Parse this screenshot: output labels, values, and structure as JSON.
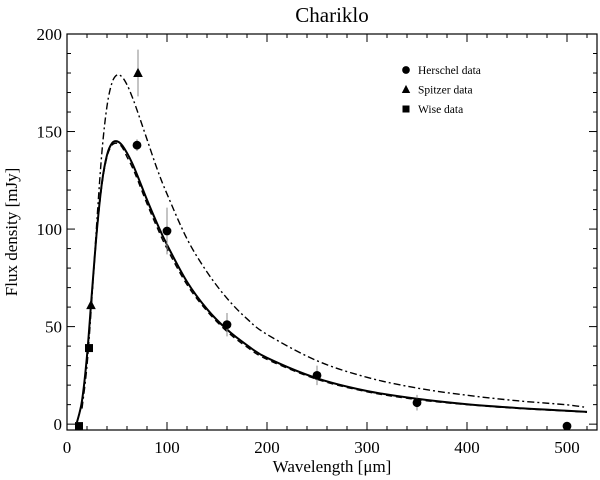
{
  "chart_data": {
    "type": "scatter",
    "title": "Chariklo",
    "xlabel": "Wavelength [μm]",
    "ylabel": "Flux density [mJy]",
    "xlim": [
      0,
      530
    ],
    "ylim": [
      -3,
      200
    ],
    "x_ticks": [
      0,
      100,
      200,
      300,
      400,
      500
    ],
    "x_tick_labels": [
      "0",
      "100",
      "200",
      "300",
      "400",
      "500"
    ],
    "y_ticks": [
      0,
      50,
      100,
      150,
      200
    ],
    "y_tick_labels": [
      "0",
      "50",
      "100",
      "150",
      "200"
    ],
    "legend_position": "top-right",
    "grid": false,
    "series": [
      {
        "name": "Herschel data",
        "marker": "circle",
        "x": [
          70,
          100,
          160,
          250,
          350,
          500
        ],
        "y": [
          143,
          99,
          51,
          25,
          11,
          -1
        ],
        "yerr": [
          3,
          12,
          6,
          5,
          4,
          2
        ]
      },
      {
        "name": "Spitzer data",
        "marker": "triangle",
        "x": [
          24,
          71
        ],
        "y": [
          61,
          180
        ],
        "yerr": [
          2,
          12
        ]
      },
      {
        "name": "Wise data",
        "marker": "square",
        "x": [
          12,
          22
        ],
        "y": [
          -1,
          39
        ],
        "yerr": [
          1,
          2
        ]
      }
    ],
    "models": [
      {
        "style": "solid",
        "x": [
          10,
          15,
          20,
          25,
          30,
          35,
          40,
          45,
          50,
          55,
          60,
          65,
          70,
          80,
          90,
          100,
          120,
          140,
          160,
          180,
          200,
          250,
          300,
          350,
          400,
          450,
          500,
          520
        ],
        "y": [
          1,
          12,
          35,
          68,
          100,
          124,
          138,
          144,
          145,
          143,
          139,
          134,
          128,
          115,
          103,
          92,
          73,
          59,
          48.5,
          40.5,
          34,
          23.5,
          17,
          13,
          10.2,
          8.3,
          6.9,
          6.3
        ]
      },
      {
        "style": "dashed",
        "x": [
          10,
          15,
          20,
          25,
          30,
          35,
          40,
          45,
          50,
          55,
          60,
          65,
          70,
          80,
          90,
          100,
          120,
          140,
          160,
          180,
          200,
          250,
          300,
          350,
          400,
          450,
          500,
          520
        ],
        "y": [
          1,
          12,
          34,
          67,
          99,
          123,
          137,
          143,
          144,
          142,
          137,
          132,
          126,
          113,
          101,
          90,
          71.5,
          58,
          47.5,
          39.5,
          33.2,
          23,
          16.6,
          12.6,
          10,
          8.1,
          6.7,
          6.1
        ]
      },
      {
        "style": "dashdot",
        "x": [
          15,
          20,
          25,
          30,
          35,
          40,
          45,
          50,
          55,
          60,
          65,
          70,
          80,
          90,
          100,
          120,
          140,
          160,
          180,
          200,
          250,
          300,
          350,
          400,
          450,
          500,
          520
        ],
        "y": [
          8,
          30,
          65,
          105,
          140,
          163,
          175,
          179,
          178,
          174,
          168,
          161,
          146,
          131,
          118,
          95,
          78,
          64.5,
          54,
          46,
          32.5,
          24,
          18.5,
          14.8,
          12,
          9.9,
          8.5
        ]
      }
    ]
  }
}
